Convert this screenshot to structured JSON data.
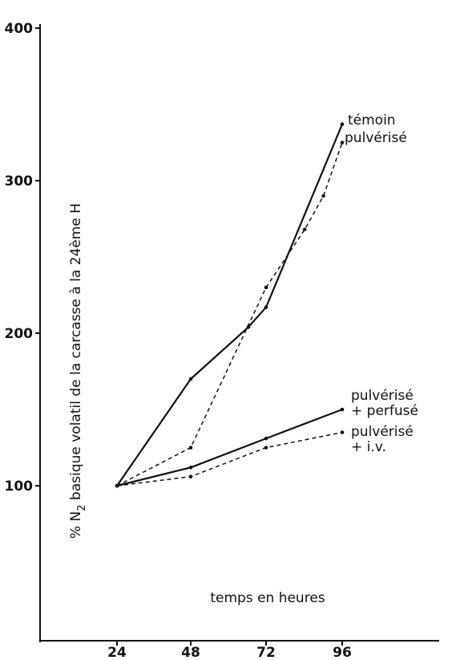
{
  "chart_data": {
    "type": "line",
    "xlabel": "temps en heures",
    "ylabel_parts": [
      "% N",
      "2",
      " basique volatil de la carcasse à la 24ème H"
    ],
    "x": [
      24,
      48,
      72,
      96
    ],
    "x_ticks": [
      "24",
      "48",
      "72",
      "96"
    ],
    "y_ticks": [
      "100",
      "200",
      "300",
      "400"
    ],
    "xlim": [
      24,
      96
    ],
    "ylim": [
      100,
      400
    ],
    "grid": false,
    "series": [
      {
        "id": "temoin",
        "style": "solid",
        "values": [
          100,
          170,
          217,
          337
        ],
        "extra_points": [
          [
            66,
            204
          ]
        ]
      },
      {
        "id": "pulverise",
        "style": "dashed",
        "values": [
          100,
          125,
          230,
          325
        ],
        "extra_points": [
          [
            84,
            268
          ],
          [
            90,
            290
          ]
        ]
      },
      {
        "id": "pulverise_perfuse",
        "style": "solid",
        "values": [
          100,
          112,
          131,
          150
        ]
      },
      {
        "id": "pulverise_iv",
        "style": "dashed",
        "values": [
          100,
          106,
          125,
          135
        ]
      }
    ],
    "annotations": [
      {
        "series": "temoin",
        "lines": [
          "témoin"
        ]
      },
      {
        "series": "pulverise",
        "lines": [
          "pulvérisé"
        ]
      },
      {
        "series": "pulverise_perfuse",
        "lines": [
          "pulvérisé",
          "+ perfusé"
        ]
      },
      {
        "series": "pulverise_iv",
        "lines": [
          "pulvérisé",
          "+ i.v."
        ]
      }
    ]
  }
}
